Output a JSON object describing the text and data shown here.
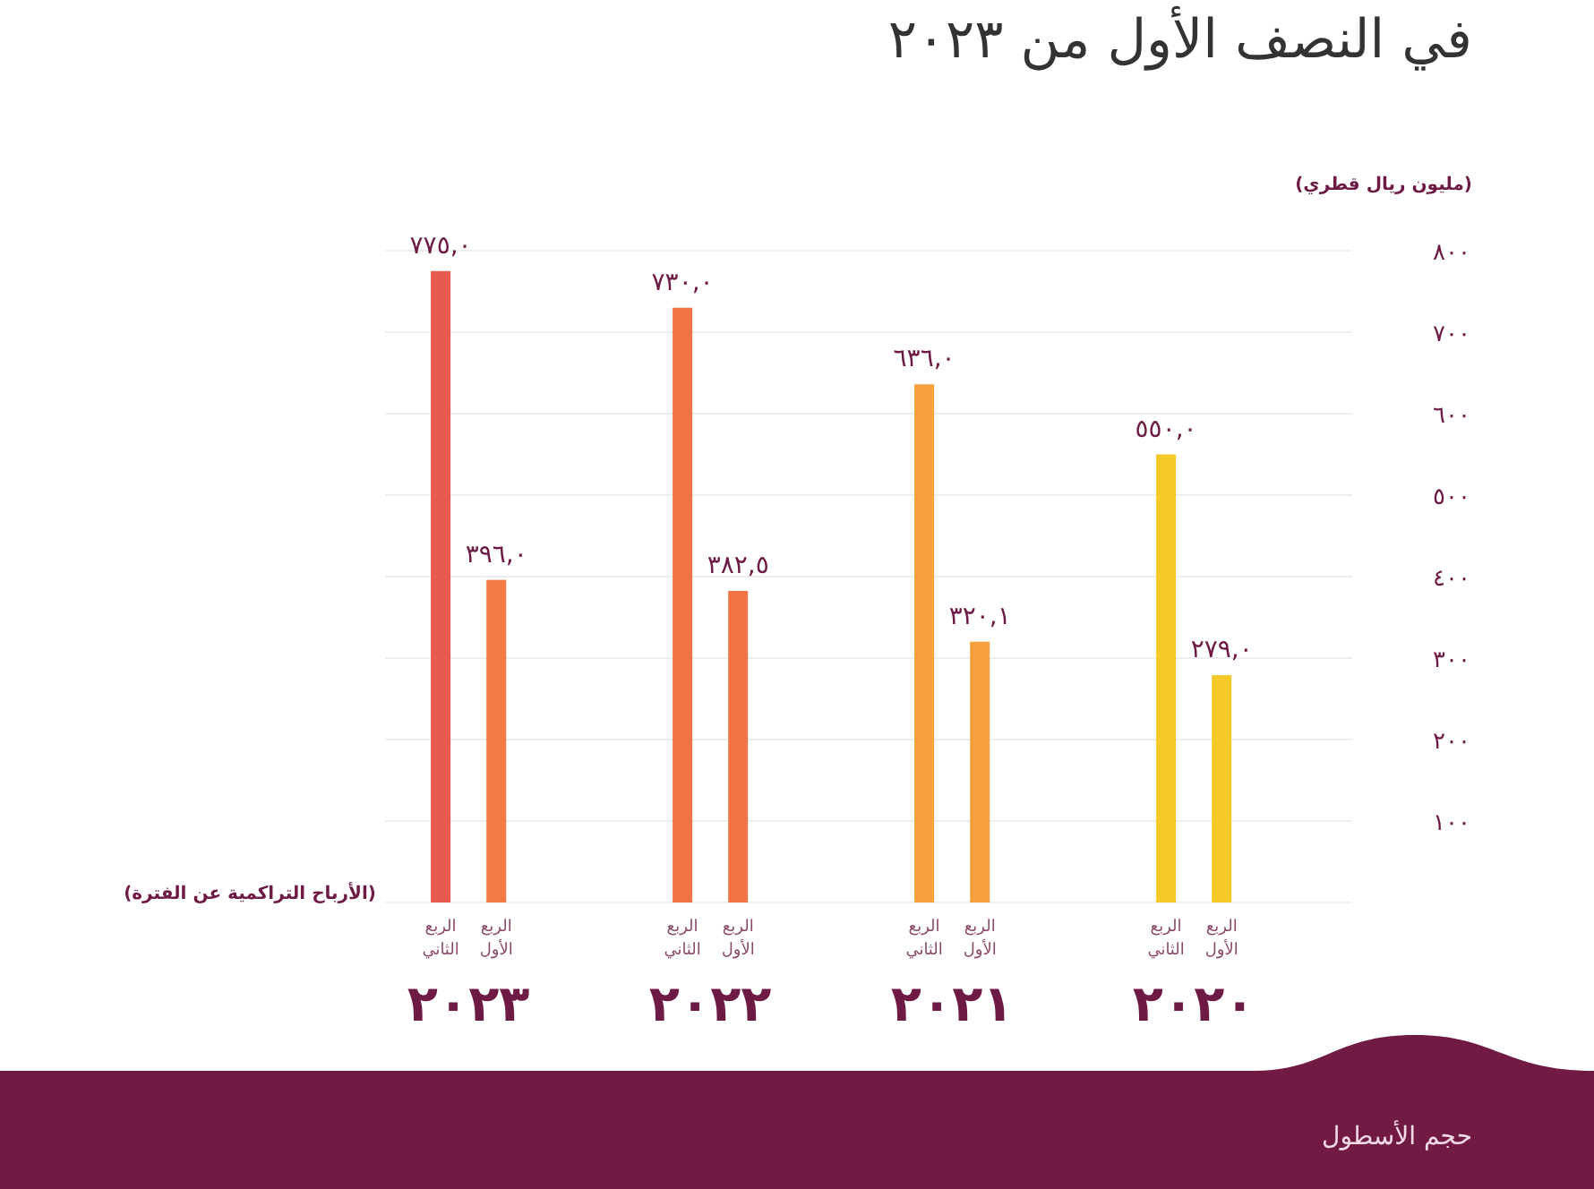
{
  "chart_data": {
    "type": "bar",
    "title": "في النصف الأول من ٢٠٢٣",
    "xlabel": "(الأرباح التراكمية عن الفترة)",
    "ylabel": "(مليون ريال قطري)",
    "categories": [
      "٢٠٢٣",
      "٢٠٢٢",
      "٢٠٢١",
      "٢٠٢٠"
    ],
    "series": [
      {
        "name": "الربع الثاني",
        "colors": [
          "#e85a50",
          "#f27345",
          "#f9a03c",
          "#f4c928"
        ],
        "values": [
          775.0,
          730.0,
          636.0,
          550.0
        ],
        "value_labels": [
          "٧٧٥,٠",
          "٧٣٠,٠",
          "٦٣٦,٠",
          "٥٥٠,٠"
        ]
      },
      {
        "name": "الربع الأول",
        "colors": [
          "#f47a45",
          "#f27345",
          "#f9a03c",
          "#f4c928"
        ],
        "values": [
          396.0,
          382.5,
          320.1,
          279.0
        ],
        "value_labels": [
          "٣٩٦,٠",
          "٣٨٢,٥",
          "٣٢٠,١",
          "٢٧٩,٠"
        ]
      }
    ],
    "ylim": [
      0,
      800
    ],
    "yticks": [
      {
        "value": 100,
        "label": "١٠٠"
      },
      {
        "value": 200,
        "label": "٢٠٠"
      },
      {
        "value": 300,
        "label": "٣٠٠"
      },
      {
        "value": 400,
        "label": "٤٠٠"
      },
      {
        "value": 500,
        "label": "٥٠٠"
      },
      {
        "value": 600,
        "label": "٦٠٠"
      },
      {
        "value": 700,
        "label": "٧٠٠"
      },
      {
        "value": 800,
        "label": "٨٠٠"
      }
    ],
    "grid": "y",
    "annotations": [
      "حجم الأسطول"
    ]
  }
}
